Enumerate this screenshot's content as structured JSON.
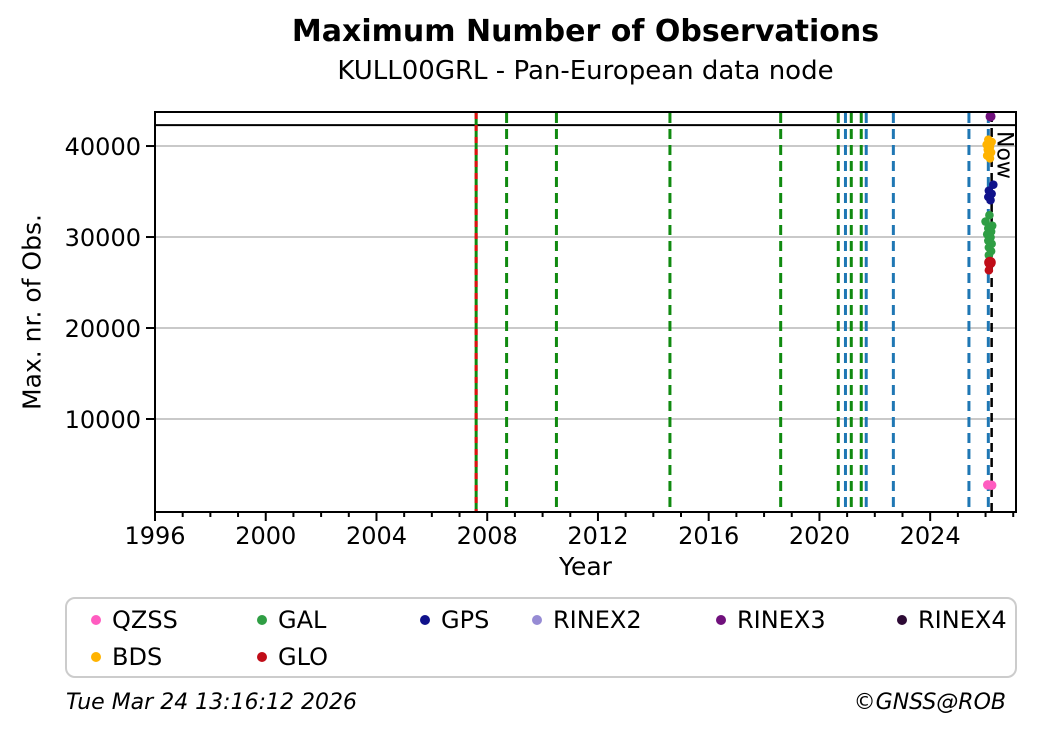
{
  "chart_data": {
    "type": "scatter",
    "title": "Maximum Number of Observations",
    "subtitle": "KULL00GRL - Pan-European data node",
    "xlabel": "Year",
    "ylabel": "Max. nr. of Obs.",
    "xlim": [
      1996,
      2027.1
    ],
    "ylim": [
      -220,
      43740
    ],
    "x_major_ticks": [
      1996,
      2000,
      2004,
      2008,
      2012,
      2016,
      2020,
      2024
    ],
    "x_minor_step": 1,
    "y_ticks": [
      10000,
      20000,
      30000,
      40000
    ],
    "grid": "horizontal-only",
    "grid_color": "#b7b7b7",
    "max_line_value": 42300,
    "now": {
      "x": 2026.22,
      "label": "Now"
    },
    "event_lines": [
      {
        "x": 2007.6,
        "color": "#108a10",
        "style": "solid",
        "name": "GAL-event"
      },
      {
        "x": 2007.6,
        "color": "#e01010",
        "style": "dashed",
        "name": "GLO-event"
      },
      {
        "x": 2008.7,
        "color": "#108a10",
        "style": "dashed",
        "name": "GAL-event"
      },
      {
        "x": 2010.5,
        "color": "#108a10",
        "style": "dashed",
        "name": "GAL-event"
      },
      {
        "x": 2014.6,
        "color": "#108a10",
        "style": "dashed",
        "name": "GAL-event"
      },
      {
        "x": 2018.6,
        "color": "#108a10",
        "style": "dashed",
        "name": "GAL-event"
      },
      {
        "x": 2020.68,
        "color": "#108a10",
        "style": "dashed",
        "name": "GAL-event"
      },
      {
        "x": 2020.94,
        "color": "#1f77b4",
        "style": "dashed",
        "name": "GPS-event"
      },
      {
        "x": 2021.15,
        "color": "#108a10",
        "style": "dashed",
        "name": "GAL-event"
      },
      {
        "x": 2021.51,
        "color": "#108a10",
        "style": "dashed",
        "name": "GAL-event"
      },
      {
        "x": 2021.69,
        "color": "#1f77b4",
        "style": "dashed",
        "name": "GPS-event"
      },
      {
        "x": 2022.67,
        "color": "#1f77b4",
        "style": "dashed",
        "name": "GPS-event"
      },
      {
        "x": 2025.4,
        "color": "#1f77b4",
        "style": "dashed",
        "name": "GPS-event"
      },
      {
        "x": 2026.1,
        "color": "#1f77b4",
        "style": "dashed",
        "name": "GPS-event"
      }
    ],
    "series": [
      {
        "name": "QZSS",
        "color": "#ff5cc0",
        "points": [
          [
            2026.08,
            2760
          ],
          [
            2026.22,
            2720
          ]
        ]
      },
      {
        "name": "BDS",
        "color": "#ffb300",
        "points": [
          [
            2026.1,
            40700
          ],
          [
            2026.22,
            40450
          ],
          [
            2026.04,
            40150
          ],
          [
            2026.16,
            39900
          ],
          [
            2026.08,
            39600
          ],
          [
            2026.2,
            39300
          ],
          [
            2026.06,
            38950
          ],
          [
            2026.16,
            38650
          ]
        ]
      },
      {
        "name": "GAL",
        "color": "#2f9e44",
        "points": [
          [
            2026.14,
            32400
          ],
          [
            2026.0,
            31700
          ],
          [
            2026.24,
            31250
          ],
          [
            2026.1,
            30950
          ],
          [
            2026.2,
            30600
          ],
          [
            2026.06,
            30300
          ],
          [
            2026.18,
            29950
          ],
          [
            2026.1,
            29600
          ],
          [
            2026.22,
            29250
          ],
          [
            2026.12,
            28850
          ],
          [
            2026.2,
            28450
          ],
          [
            2026.12,
            28000
          ]
        ]
      },
      {
        "name": "GPS",
        "color": "#10128b",
        "points": [
          [
            2026.28,
            35750
          ],
          [
            2026.12,
            35100
          ],
          [
            2026.22,
            34750
          ],
          [
            2026.1,
            34400
          ],
          [
            2026.18,
            34050
          ]
        ]
      },
      {
        "name": "GLO",
        "color": "#c00d18",
        "points": [
          [
            2026.16,
            27200
          ],
          [
            2026.12,
            26350
          ]
        ]
      },
      {
        "name": "RINEX2",
        "color": "#968bd4",
        "points": []
      },
      {
        "name": "RINEX3",
        "color": "#70107c",
        "points": [
          [
            2026.18,
            43250
          ]
        ]
      },
      {
        "name": "RINEX4",
        "color": "#2d0a35",
        "points": []
      }
    ]
  },
  "legend": {
    "columns": [
      [
        "QZSS",
        "BDS"
      ],
      [
        "GAL",
        "GLO"
      ],
      [
        "GPS"
      ],
      [
        "RINEX2"
      ],
      [
        "RINEX3"
      ],
      [
        "RINEX4"
      ]
    ]
  },
  "footer": {
    "timestamp": "Tue Mar 24 13:16:12 2026",
    "copyright": "©GNSS@ROB"
  }
}
